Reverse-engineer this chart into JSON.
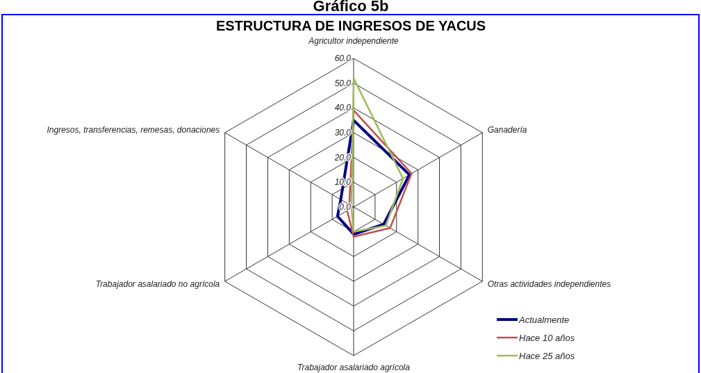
{
  "chart_data": {
    "type": "radar",
    "title": "Gráfico 5b",
    "subtitle": "ESTRUCTURA DE INGRESOS DE YACUS",
    "categories": [
      "Agricultor independiente",
      "Ganadería",
      "Otras actividades independientes",
      "Trabajador asalariado agrícola",
      "Trabajador asalariado no agrícola",
      "Ingresos, transferencias, remesas, donaciones"
    ],
    "series": [
      {
        "name": "Actualmente",
        "color": "#000080",
        "values": [
          35,
          26,
          14,
          11,
          7.5,
          6
        ]
      },
      {
        "name": "Hace 10 años",
        "color": "#c0504d",
        "values": [
          39,
          27,
          17,
          12,
          3,
          2
        ]
      },
      {
        "name": "Hace 25 años",
        "color": "#9bbb59",
        "values": [
          52,
          23,
          15,
          10,
          1,
          1
        ]
      }
    ],
    "ylim": [
      0,
      60
    ],
    "yticks": [
      {
        "value": 0,
        "label": "0.0"
      },
      {
        "value": 10,
        "label": "10.0"
      },
      {
        "value": 20,
        "label": "20.0"
      },
      {
        "value": 30,
        "label": "30.0"
      },
      {
        "value": 40,
        "label": "40.0"
      },
      {
        "value": 50,
        "label": "50.0"
      },
      {
        "value": 60,
        "label": "60.0"
      }
    ],
    "grid": true,
    "legend": "bottom right",
    "line_style": "solid",
    "marker": "none"
  }
}
